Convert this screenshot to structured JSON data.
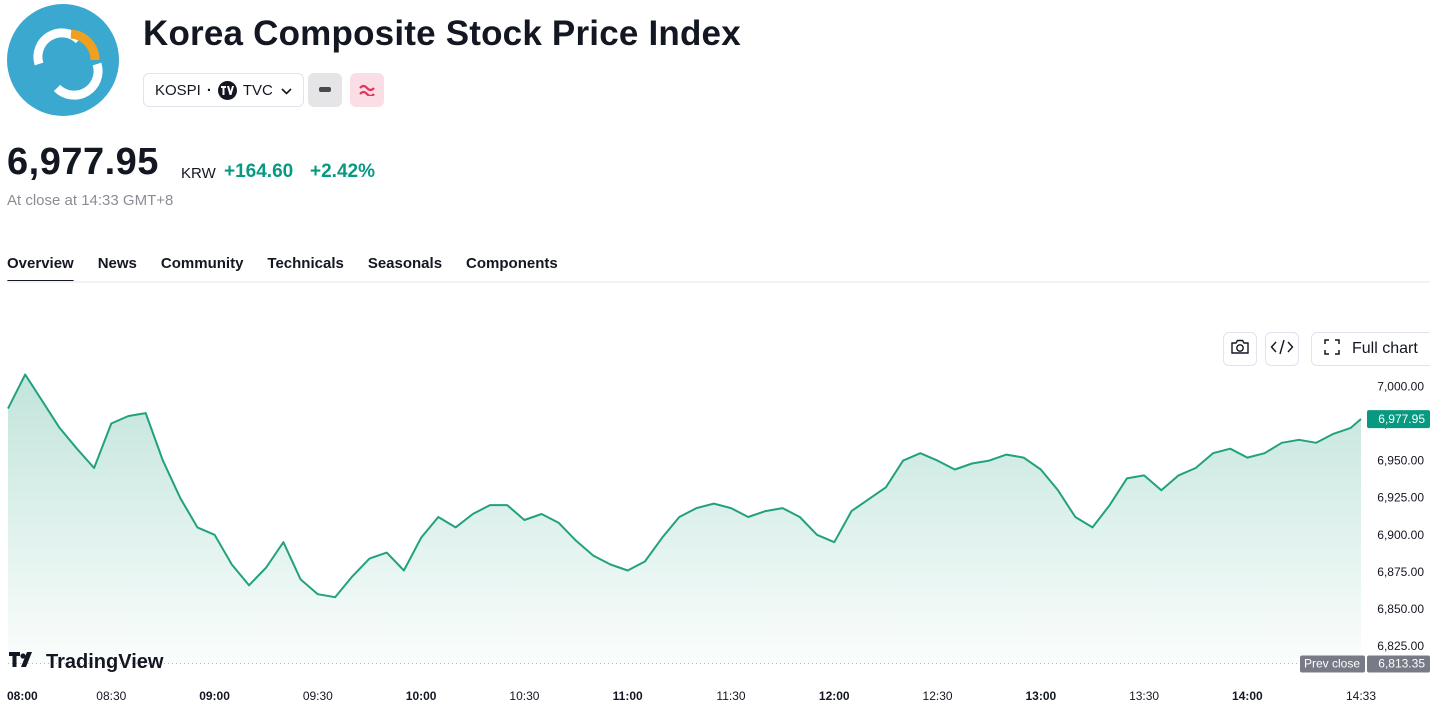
{
  "header": {
    "title": "Korea Composite Stock Price Index",
    "symbol": "KOSPI",
    "separator": "·",
    "exchange": "TVC",
    "logo_icon": "kospi-logo-icon"
  },
  "quote": {
    "price": "6,977.95",
    "currency": "KRW",
    "change": "+164.60",
    "change_percent": "+2.42%",
    "status": "At close at 14:33 GMT+8"
  },
  "tabs": [
    {
      "label": "Overview",
      "active": true
    },
    {
      "label": "News",
      "active": false
    },
    {
      "label": "Community",
      "active": false
    },
    {
      "label": "Technicals",
      "active": false
    },
    {
      "label": "Seasonals",
      "active": false
    },
    {
      "label": "Components",
      "active": false
    }
  ],
  "toolbar": {
    "snapshot_icon": "camera-icon",
    "embed_icon": "code-icon",
    "full_chart_label": "Full chart",
    "full_chart_icon": "fullscreen-icon"
  },
  "colors": {
    "up": "#089981",
    "line": "#22a17f",
    "logo_bg": "#3ba8cf",
    "logo_accent": "#f0a020",
    "prev_close_bg": "#787b86"
  },
  "chart_data": {
    "type": "area",
    "y_unit": "KRW",
    "ylim": [
      6813,
      7011
    ],
    "y_ticks": [
      "7,000.00",
      "6,975.00",
      "6,950.00",
      "6,925.00",
      "6,900.00",
      "6,875.00",
      "6,850.00",
      "6,825.00"
    ],
    "y_tick_values": [
      7000,
      6975,
      6950,
      6925,
      6900,
      6875,
      6850,
      6825
    ],
    "x_ticks": [
      "08:00",
      "08:30",
      "09:00",
      "09:30",
      "10:00",
      "10:30",
      "11:00",
      "11:30",
      "12:00",
      "12:30",
      "13:00",
      "13:30",
      "14:00",
      "14:33"
    ],
    "x_ticks_bold": [
      "08:00",
      "09:00",
      "10:00",
      "11:00",
      "12:00",
      "13:00",
      "14:00"
    ],
    "last_value": 6977.95,
    "last_label": "6,977.95",
    "prev_close": 6813.35,
    "prev_close_label": "6,813.35",
    "prev_close_caption": "Prev close",
    "watermark": "TradingView",
    "watermark_icon": "tradingview-logo-icon",
    "grid": false,
    "series": [
      {
        "x": [
          "08:00",
          "08:05",
          "08:10",
          "08:15",
          "08:20",
          "08:25",
          "08:30",
          "08:35",
          "08:40",
          "08:45",
          "08:50",
          "08:55",
          "09:00",
          "09:05",
          "09:10",
          "09:15",
          "09:20",
          "09:25",
          "09:30",
          "09:35",
          "09:40",
          "09:45",
          "09:50",
          "09:55",
          "10:00",
          "10:05",
          "10:10",
          "10:15",
          "10:20",
          "10:25",
          "10:30",
          "10:35",
          "10:40",
          "10:45",
          "10:50",
          "10:55",
          "11:00",
          "11:05",
          "11:10",
          "11:15",
          "11:20",
          "11:25",
          "11:30",
          "11:35",
          "11:40",
          "11:45",
          "11:50",
          "11:55",
          "12:00",
          "12:05",
          "12:10",
          "12:15",
          "12:20",
          "12:25",
          "12:30",
          "12:35",
          "12:40",
          "12:45",
          "12:50",
          "12:55",
          "13:00",
          "13:05",
          "13:10",
          "13:15",
          "13:20",
          "13:25",
          "13:30",
          "13:35",
          "13:40",
          "13:45",
          "13:50",
          "13:55",
          "14:00",
          "14:05",
          "14:10",
          "14:15",
          "14:20",
          "14:25",
          "14:30",
          "14:33"
        ],
        "y": [
          6985,
          7008,
          6990,
          6972,
          6958,
          6945,
          6975,
          6980,
          6982,
          6950,
          6925,
          6905,
          6900,
          6880,
          6866,
          6878,
          6895,
          6870,
          6860,
          6858,
          6872,
          6884,
          6888,
          6876,
          6898,
          6912,
          6905,
          6914,
          6920,
          6920,
          6910,
          6914,
          6908,
          6896,
          6886,
          6880,
          6876,
          6882,
          6898,
          6912,
          6918,
          6921,
          6918,
          6912,
          6916,
          6918,
          6912,
          6900,
          6895,
          6916,
          6924,
          6932,
          6950,
          6955,
          6950,
          6944,
          6948,
          6950,
          6954,
          6952,
          6944,
          6930,
          6912,
          6905,
          6920,
          6938,
          6940,
          6930,
          6940,
          6945,
          6955,
          6958,
          6952,
          6955,
          6962,
          6964,
          6962,
          6968,
          6972,
          6978
        ]
      }
    ]
  }
}
